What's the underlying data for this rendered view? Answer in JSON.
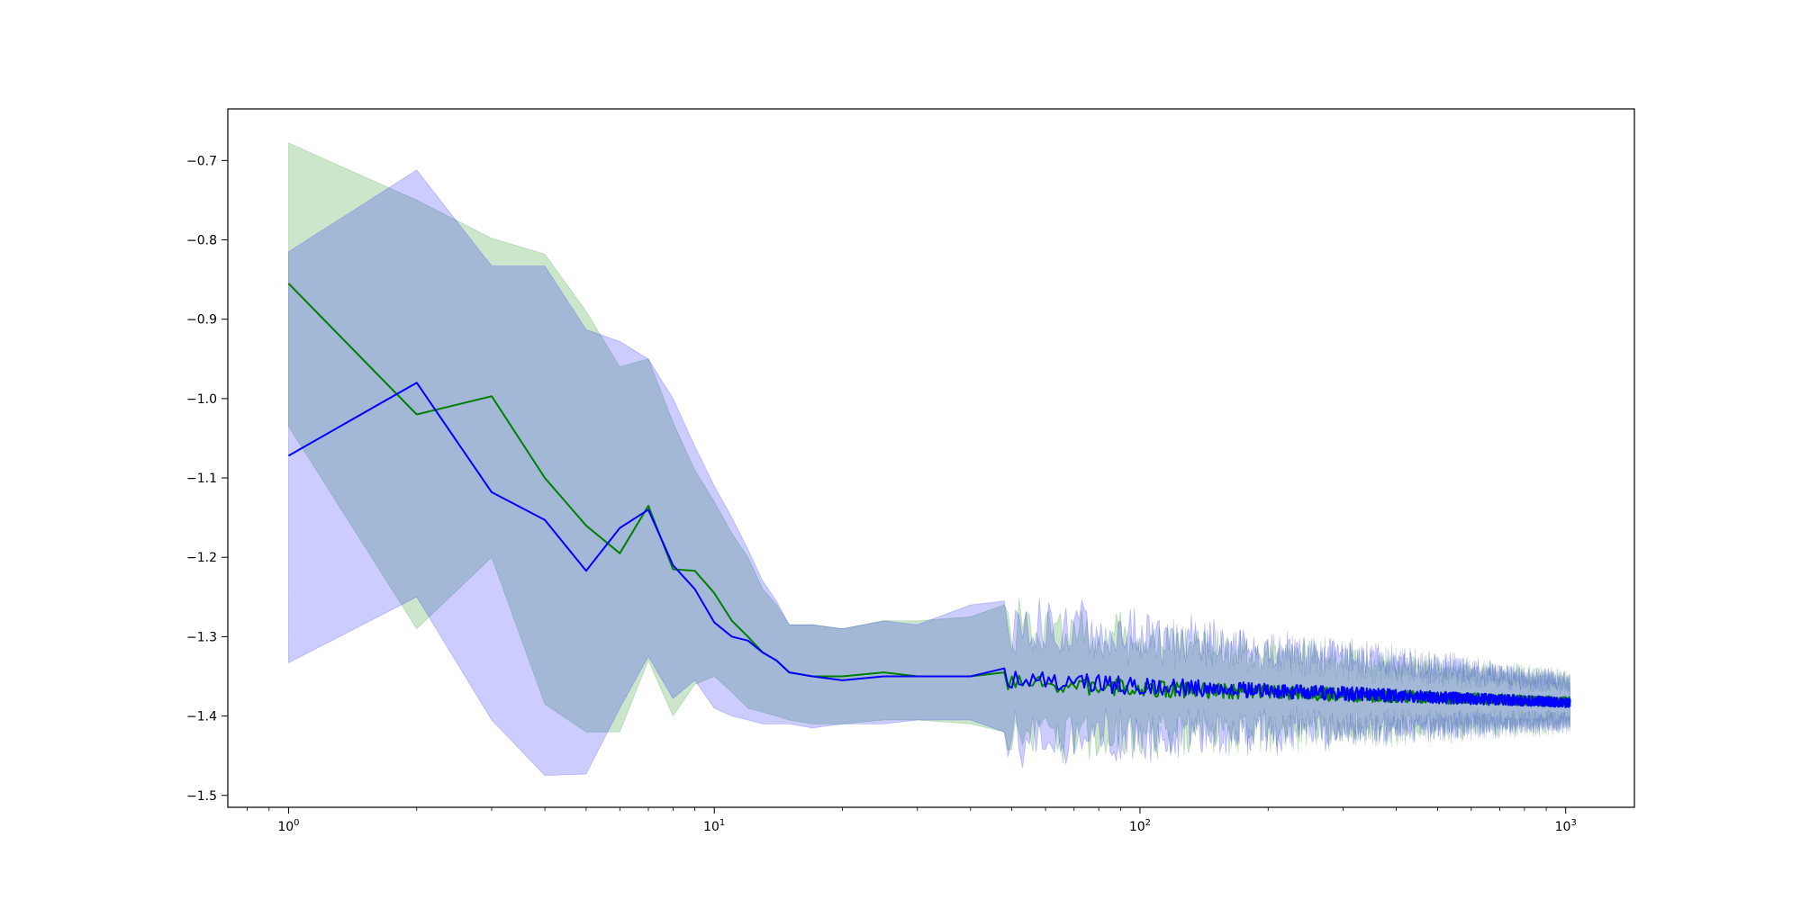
{
  "chart_data": {
    "type": "line",
    "x_scale": "log",
    "xlim": [
      0.72,
      1450
    ],
    "ylim": [
      -1.515,
      -0.635
    ],
    "grid": false,
    "title": "",
    "xlabel": "",
    "ylabel": "",
    "x_ticks": [
      {
        "value": 1,
        "base": "10",
        "exp": "0"
      },
      {
        "value": 10,
        "base": "10",
        "exp": "1"
      },
      {
        "value": 100,
        "base": "10",
        "exp": "2"
      },
      {
        "value": 1000,
        "base": "10",
        "exp": "3"
      }
    ],
    "y_ticks": [
      {
        "value": -0.7,
        "label": "−0.7"
      },
      {
        "value": -0.8,
        "label": "−0.8"
      },
      {
        "value": -0.9,
        "label": "−0.9"
      },
      {
        "value": -1.0,
        "label": "−1.0"
      },
      {
        "value": -1.1,
        "label": "−1.1"
      },
      {
        "value": -1.2,
        "label": "−1.2"
      },
      {
        "value": -1.3,
        "label": "−1.3"
      },
      {
        "value": -1.4,
        "label": "−1.4"
      },
      {
        "value": -1.5,
        "label": "−1.5"
      }
    ],
    "series": [
      {
        "color": "#008000",
        "band_color": "#008000",
        "band_opacity": 0.2,
        "x": [
          1,
          2,
          3,
          4,
          5,
          6,
          7,
          8,
          9,
          10,
          11,
          12,
          13,
          14,
          15,
          17,
          20,
          25,
          30,
          40,
          48
        ],
        "y": [
          -0.855,
          -1.02,
          -0.997,
          -1.1,
          -1.16,
          -1.195,
          -1.135,
          -1.215,
          -1.217,
          -1.245,
          -1.28,
          -1.3,
          -1.32,
          -1.33,
          -1.345,
          -1.35,
          -1.35,
          -1.345,
          -1.35,
          -1.35,
          -1.345
        ],
        "upper": [
          -0.678,
          -0.75,
          -0.798,
          -0.818,
          -0.89,
          -0.96,
          -0.95,
          -1.03,
          -1.09,
          -1.13,
          -1.17,
          -1.2,
          -1.24,
          -1.26,
          -1.285,
          -1.285,
          -1.29,
          -1.28,
          -1.28,
          -1.275,
          -1.26
        ],
        "lower": [
          -1.035,
          -1.29,
          -1.2,
          -1.385,
          -1.42,
          -1.42,
          -1.33,
          -1.4,
          -1.36,
          -1.35,
          -1.37,
          -1.39,
          -1.395,
          -1.4,
          -1.405,
          -1.41,
          -1.41,
          -1.405,
          -1.405,
          -1.41,
          -1.42
        ],
        "tail": {
          "from": 48,
          "to": 1024,
          "mean_start": -1.36,
          "mean_end": -1.382,
          "noise_start": 0.012,
          "noise_end": 0.006,
          "half_width_start": 0.07,
          "half_width_end": 0.025,
          "seed": 7
        }
      },
      {
        "color": "#0000ff",
        "band_color": "#0000ff",
        "band_opacity": 0.2,
        "x": [
          1,
          2,
          3,
          4,
          5,
          6,
          7,
          8,
          9,
          10,
          11,
          12,
          13,
          14,
          15,
          17,
          20,
          25,
          30,
          40,
          48
        ],
        "y": [
          -1.072,
          -0.98,
          -1.118,
          -1.153,
          -1.217,
          -1.163,
          -1.14,
          -1.21,
          -1.24,
          -1.282,
          -1.3,
          -1.305,
          -1.32,
          -1.33,
          -1.345,
          -1.35,
          -1.355,
          -1.35,
          -1.35,
          -1.35,
          -1.34
        ],
        "upper": [
          -0.815,
          -0.712,
          -0.833,
          -0.833,
          -0.913,
          -0.928,
          -0.95,
          -1.0,
          -1.06,
          -1.11,
          -1.15,
          -1.19,
          -1.23,
          -1.255,
          -1.285,
          -1.285,
          -1.29,
          -1.28,
          -1.285,
          -1.26,
          -1.255
        ],
        "lower": [
          -1.333,
          -1.25,
          -1.405,
          -1.475,
          -1.473,
          -1.39,
          -1.325,
          -1.378,
          -1.355,
          -1.39,
          -1.4,
          -1.405,
          -1.41,
          -1.41,
          -1.41,
          -1.415,
          -1.41,
          -1.41,
          -1.405,
          -1.405,
          -1.42
        ],
        "tail": {
          "from": 48,
          "to": 1024,
          "mean_start": -1.355,
          "mean_end": -1.383,
          "noise_start": 0.013,
          "noise_end": 0.006,
          "half_width_start": 0.075,
          "half_width_end": 0.025,
          "seed": 13
        }
      }
    ]
  }
}
